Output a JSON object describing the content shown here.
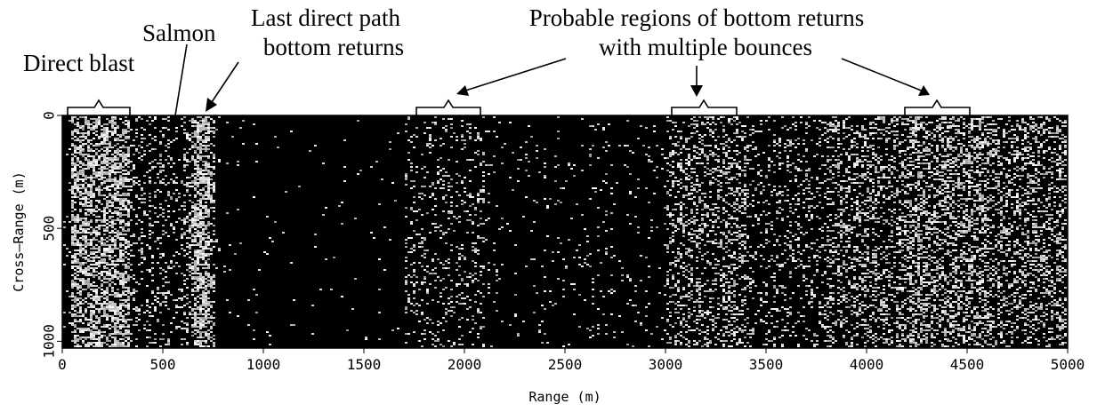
{
  "chart_data": {
    "type": "image",
    "x_label": "Range (m)",
    "y_label": "Cross–Range (m)",
    "xlim": [
      0,
      5000
    ],
    "xticks": [
      0,
      500,
      1000,
      1500,
      2000,
      2500,
      3000,
      3500,
      4000,
      4500,
      5000
    ],
    "ylim": [
      0,
      1030
    ],
    "yticks": [
      0,
      500,
      1000
    ],
    "y_inverted": true,
    "annotations": [
      {
        "lines": [
          "Direct blast"
        ]
      },
      {
        "lines": [
          "Salmon"
        ]
      },
      {
        "lines": [
          "Last direct path",
          "bottom returns"
        ]
      },
      {
        "lines": [
          "Probable regions of bottom returns",
          "with multiple bounces"
        ]
      }
    ]
  }
}
